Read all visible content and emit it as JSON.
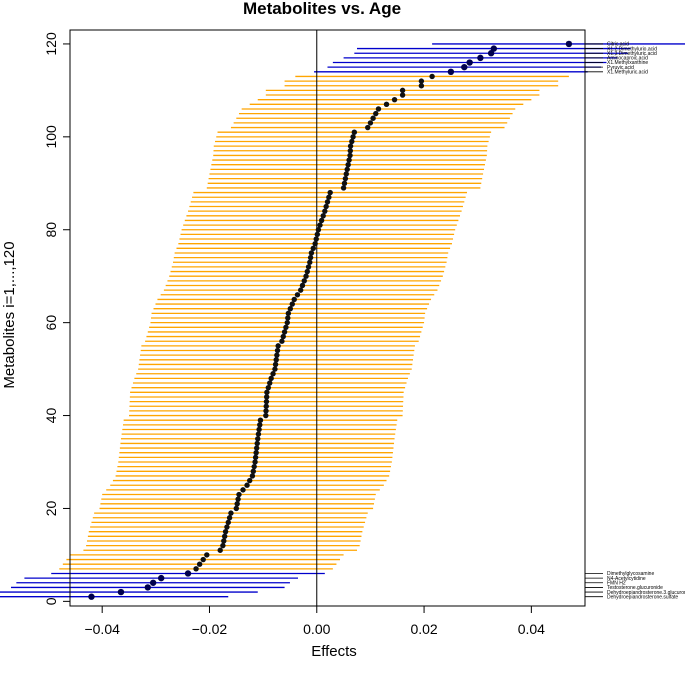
{
  "chart_data": {
    "type": "forest",
    "title": "Metabolites vs. Age",
    "xlabel": "Effects",
    "ylabel": "Metabolites i=1,...,120",
    "xlim": [
      -0.046,
      0.05
    ],
    "ylim": [
      -1,
      123
    ],
    "x_ticks": [
      -0.04,
      -0.02,
      0.0,
      0.02,
      0.04
    ],
    "x_tick_labels": [
      "−0.04",
      "−0.02",
      "0.00",
      "0.02",
      "0.04"
    ],
    "y_ticks": [
      0,
      20,
      40,
      60,
      80,
      100,
      120
    ],
    "y_tick_labels": [
      "0",
      "20",
      "40",
      "60",
      "80",
      "100",
      "120"
    ],
    "reference_line_x": 0,
    "ci_half_width": 0.0255,
    "colors": {
      "significant": "#0000cc",
      "nonsignificant": "#ffa500",
      "point": "#000033",
      "axis": "#000000"
    },
    "effect_anchors": [
      [
        1,
        -0.042
      ],
      [
        2,
        -0.0365
      ],
      [
        3,
        -0.0315
      ],
      [
        4,
        -0.0305
      ],
      [
        5,
        -0.029
      ],
      [
        6,
        -0.024
      ],
      [
        7,
        -0.0225
      ],
      [
        10,
        -0.0205
      ],
      [
        11,
        -0.018
      ],
      [
        12,
        -0.0175
      ],
      [
        15,
        -0.017
      ],
      [
        17,
        -0.0165
      ],
      [
        19,
        -0.016
      ],
      [
        20,
        -0.015
      ],
      [
        23,
        -0.0145
      ],
      [
        25,
        -0.013
      ],
      [
        27,
        -0.012
      ],
      [
        30,
        -0.0115
      ],
      [
        35,
        -0.011
      ],
      [
        39,
        -0.0105
      ],
      [
        40,
        -0.0095
      ],
      [
        45,
        -0.0093
      ],
      [
        48,
        -0.0085
      ],
      [
        50,
        -0.0078
      ],
      [
        55,
        -0.0072
      ],
      [
        56,
        -0.0065
      ],
      [
        60,
        -0.0055
      ],
      [
        62,
        -0.0053
      ],
      [
        65,
        -0.0042
      ],
      [
        67,
        -0.003
      ],
      [
        70,
        -0.002
      ],
      [
        73,
        -0.0013
      ],
      [
        75,
        -0.001
      ],
      [
        77,
        -0.0003
      ],
      [
        80,
        0.0003
      ],
      [
        84,
        0.0015
      ],
      [
        88,
        0.0025
      ],
      [
        89,
        0.005
      ],
      [
        92,
        0.0055
      ],
      [
        96,
        0.0062
      ],
      [
        98,
        0.0063
      ],
      [
        101,
        0.007
      ],
      [
        102,
        0.0095
      ],
      [
        104,
        0.0105
      ],
      [
        105,
        0.011
      ],
      [
        106,
        0.0115
      ],
      [
        107,
        0.013
      ],
      [
        108,
        0.0145
      ],
      [
        109,
        0.016
      ],
      [
        110,
        0.016
      ],
      [
        111,
        0.0195
      ],
      [
        112,
        0.0195
      ],
      [
        113,
        0.0215
      ],
      [
        114,
        0.025
      ],
      [
        115,
        0.0275
      ],
      [
        116,
        0.0285
      ],
      [
        117,
        0.0305
      ],
      [
        118,
        0.0325
      ],
      [
        119,
        0.033
      ],
      [
        120,
        0.047
      ]
    ],
    "significant_bottom": [
      1,
      2,
      3,
      4,
      5,
      6
    ],
    "significant_top": [
      114,
      115,
      116,
      117,
      118,
      119,
      120
    ],
    "annotations_bottom": [
      "Dimethylglycosamine",
      "N4-Acetylcytidine",
      "FMN H2",
      "Testosterone.glucuronide",
      "Dehydroepiandrosterone.3.glucuronide",
      "Dehydroepiandrosterone.sulfate"
    ],
    "annotations_top": [
      "Citric.acid",
      "X1.2.Dimethylurio.acid",
      "X1.3.Dimethyluric.acid",
      "Aminocaproic.acid",
      "X1.Methylxanthine",
      "Pyruvic.acid",
      "X1.Methyluric.acid"
    ]
  }
}
